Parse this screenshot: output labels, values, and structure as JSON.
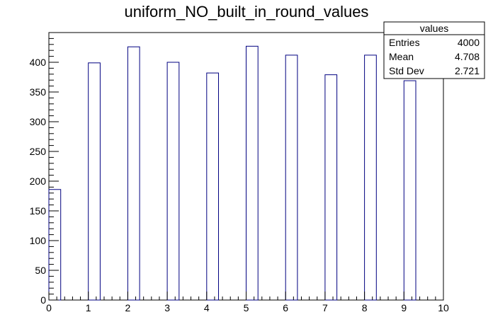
{
  "chart_data": {
    "type": "bar",
    "title": "uniform_NO_built_in_round_values",
    "xlabel": "",
    "ylabel": "",
    "xlim": [
      0,
      10
    ],
    "ylim": [
      0,
      450
    ],
    "x_ticks": [
      "0",
      "1",
      "2",
      "3",
      "4",
      "5",
      "6",
      "7",
      "8",
      "9",
      "10"
    ],
    "y_ticks": [
      "0",
      "50",
      "100",
      "150",
      "200",
      "250",
      "300",
      "350",
      "400"
    ],
    "bins": [
      {
        "x_low": 0.0,
        "x_high": 0.3,
        "value": 186
      },
      {
        "x_low": 1.0,
        "x_high": 1.3,
        "value": 399
      },
      {
        "x_low": 2.0,
        "x_high": 2.3,
        "value": 426
      },
      {
        "x_low": 3.0,
        "x_high": 3.3,
        "value": 400
      },
      {
        "x_low": 4.0,
        "x_high": 4.3,
        "value": 382
      },
      {
        "x_low": 5.0,
        "x_high": 5.3,
        "value": 427
      },
      {
        "x_low": 6.0,
        "x_high": 6.3,
        "value": 412
      },
      {
        "x_low": 7.0,
        "x_high": 7.3,
        "value": 379
      },
      {
        "x_low": 8.0,
        "x_high": 8.3,
        "value": 412
      },
      {
        "x_low": 9.0,
        "x_high": 9.3,
        "value": 369
      }
    ],
    "bar_color": "#000080",
    "grid": false,
    "stats": {
      "title": "values",
      "placement": "top-right",
      "rows": [
        {
          "label": "Entries",
          "value": "4000"
        },
        {
          "label": "Mean",
          "value": "4.708"
        },
        {
          "label": "Std Dev",
          "value": "2.721"
        }
      ]
    }
  }
}
